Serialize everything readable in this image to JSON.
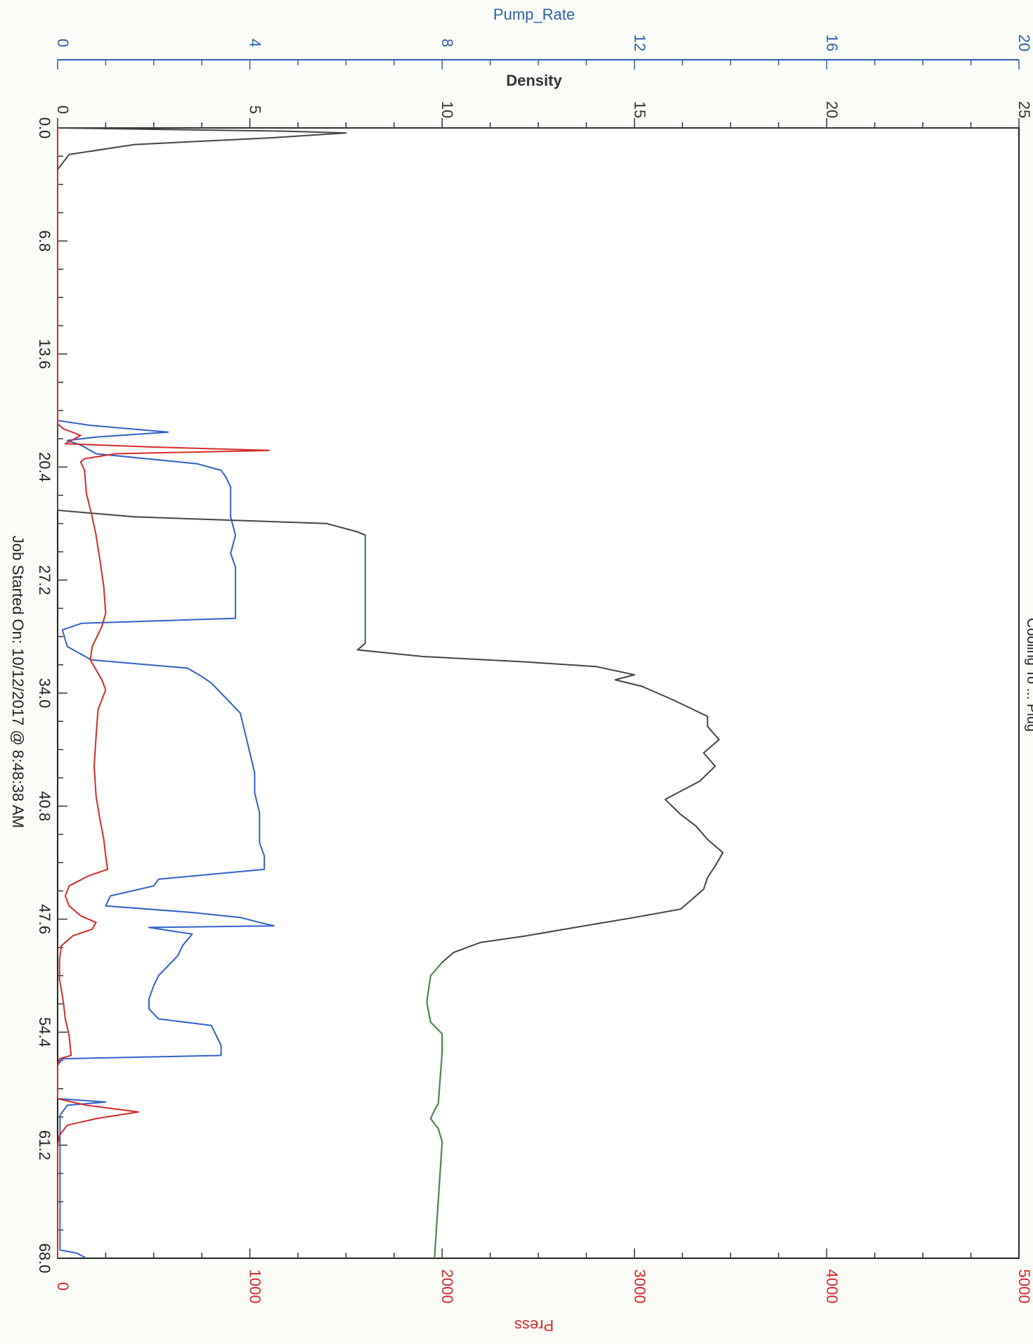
{
  "chart_data": {
    "type": "line",
    "orientation": "rotated-90",
    "footer": "Job Started On: 10/12/2017 @ 8:48:38 AM",
    "partial_title": "Cooling To ... Plug",
    "x_axis": {
      "ticks": [
        "0.0",
        "6.8",
        "13.6",
        "20.4",
        "27.2",
        "34.0",
        "40.8",
        "47.6",
        "54.4",
        "61.2",
        "68.0"
      ],
      "range": [
        0,
        68
      ]
    },
    "axes": {
      "pump_rate": {
        "label": "Pump_Rate",
        "range": [
          0,
          20
        ],
        "ticks": [
          "0",
          "4",
          "8",
          "12",
          "16",
          "20"
        ],
        "color": "#2f5fa8"
      },
      "density": {
        "label": "Density",
        "range": [
          0,
          25
        ],
        "ticks": [
          "0",
          "5",
          "10",
          "15",
          "20",
          "25"
        ],
        "color": "#333333"
      },
      "press": {
        "label": "Press",
        "range": [
          0,
          5000
        ],
        "ticks": [
          "0",
          "1000",
          "2000",
          "3000",
          "4000",
          "5000"
        ],
        "color": "#d42a2a"
      }
    },
    "series": [
      {
        "name": "Density",
        "axis": "density",
        "color": "#444444",
        "points": [
          [
            0,
            0
          ],
          [
            0.2,
            6
          ],
          [
            0.3,
            7.5
          ],
          [
            0.6,
            5.5
          ],
          [
            1.0,
            2
          ],
          [
            1.6,
            0.3
          ],
          [
            2.5,
            0
          ],
          [
            23,
            0
          ],
          [
            23.4,
            2
          ],
          [
            23.8,
            7
          ],
          [
            24.3,
            7.8
          ],
          [
            24.5,
            8.0
          ],
          [
            31,
            8
          ],
          [
            31.4,
            7.8
          ],
          [
            31.8,
            9.5
          ],
          [
            32.1,
            12.0
          ],
          [
            32.4,
            14.0
          ],
          [
            32.9,
            15.0
          ],
          [
            33.2,
            14.5
          ],
          [
            33.6,
            15.2
          ],
          [
            34.4,
            16.0
          ],
          [
            35.4,
            16.9
          ],
          [
            36.0,
            16.9
          ],
          [
            36.8,
            17.2
          ],
          [
            37.6,
            16.8
          ],
          [
            38.4,
            17.1
          ],
          [
            39.3,
            16.7
          ],
          [
            40.4,
            15.8
          ],
          [
            41.3,
            16.2
          ],
          [
            42.0,
            16.6
          ],
          [
            42.8,
            16.9
          ],
          [
            43.6,
            17.3
          ],
          [
            44.4,
            17.1
          ],
          [
            45.1,
            16.9
          ],
          [
            45.8,
            16.8
          ],
          [
            46.4,
            16.5
          ],
          [
            47.0,
            16.2
          ],
          [
            47.5,
            15.0
          ],
          [
            48.0,
            13.7
          ],
          [
            48.6,
            12.2
          ],
          [
            49.0,
            11.0
          ],
          [
            49.6,
            10.3
          ],
          [
            50.2,
            10.0
          ],
          [
            51.0,
            9.7
          ],
          [
            52.6,
            9.6
          ],
          [
            53.8,
            9.7
          ],
          [
            54.5,
            10.0
          ],
          [
            55.6,
            10.0
          ],
          [
            58.7,
            9.9
          ],
          [
            59.1,
            9.8
          ],
          [
            59.6,
            9.7
          ],
          [
            60.2,
            9.9
          ],
          [
            61.0,
            10.0
          ],
          [
            68.0,
            9.8
          ]
        ]
      },
      {
        "name": "Pump_Rate",
        "axis": "pump_rate",
        "color": "#2f60c8",
        "points": [
          [
            0,
            0
          ],
          [
            17.6,
            0
          ],
          [
            17.9,
            0.7
          ],
          [
            18.3,
            2.3
          ],
          [
            18.6,
            0.8
          ],
          [
            18.8,
            0.2
          ],
          [
            19.1,
            0.5
          ],
          [
            19.6,
            0.8
          ],
          [
            20.2,
            2.9
          ],
          [
            20.6,
            3.4
          ],
          [
            21.0,
            3.5
          ],
          [
            21.6,
            3.6
          ],
          [
            22.4,
            3.6
          ],
          [
            23.4,
            3.6
          ],
          [
            24.5,
            3.7
          ],
          [
            25.6,
            3.6
          ],
          [
            26.4,
            3.7
          ],
          [
            27.2,
            3.7
          ],
          [
            28.2,
            3.7
          ],
          [
            29.5,
            3.7
          ],
          [
            29.8,
            0.5
          ],
          [
            30.2,
            0.1
          ],
          [
            31.2,
            0.2
          ],
          [
            32.0,
            0.7
          ],
          [
            32.5,
            2.7
          ],
          [
            33.0,
            3.0
          ],
          [
            33.4,
            3.2
          ],
          [
            34.0,
            3.4
          ],
          [
            35.2,
            3.8
          ],
          [
            36.4,
            3.9
          ],
          [
            37.6,
            4.0
          ],
          [
            38.8,
            4.1
          ],
          [
            40.0,
            4.1
          ],
          [
            41.2,
            4.2
          ],
          [
            42.2,
            4.2
          ],
          [
            43.0,
            4.2
          ],
          [
            43.8,
            4.3
          ],
          [
            44.6,
            4.3
          ],
          [
            45.2,
            2.1
          ],
          [
            45.6,
            2.0
          ],
          [
            46.2,
            1.1
          ],
          [
            46.8,
            1.0
          ],
          [
            47.2,
            2.8
          ],
          [
            47.5,
            3.8
          ],
          [
            47.8,
            4.2
          ],
          [
            48.0,
            4.5
          ],
          [
            48.1,
            1.9
          ],
          [
            48.5,
            2.8
          ],
          [
            49.2,
            2.6
          ],
          [
            49.8,
            2.5
          ],
          [
            50.4,
            2.3
          ],
          [
            51.0,
            2.1
          ],
          [
            51.6,
            2.0
          ],
          [
            52.4,
            1.9
          ],
          [
            53.0,
            1.9
          ],
          [
            53.6,
            2.1
          ],
          [
            54.0,
            3.2
          ],
          [
            54.6,
            3.3
          ],
          [
            55.2,
            3.4
          ],
          [
            55.8,
            3.4
          ],
          [
            56.0,
            0.1
          ],
          [
            56.4,
            0
          ],
          [
            58.4,
            0
          ],
          [
            58.6,
            1.0
          ],
          [
            58.8,
            0.2
          ],
          [
            59.4,
            0.05
          ],
          [
            67.5,
            0.05
          ],
          [
            67.7,
            0.4
          ],
          [
            68.0,
            0.6
          ]
        ]
      },
      {
        "name": "Press",
        "axis": "press",
        "color": "#d42a2a",
        "points": [
          [
            0,
            0
          ],
          [
            17.8,
            0
          ],
          [
            18.1,
            30
          ],
          [
            18.5,
            120
          ],
          [
            19.0,
            40
          ],
          [
            19.2,
            500
          ],
          [
            19.4,
            1100
          ],
          [
            19.6,
            300
          ],
          [
            19.9,
            140
          ],
          [
            20.1,
            120
          ],
          [
            20.6,
            140
          ],
          [
            22.0,
            150
          ],
          [
            23.4,
            180
          ],
          [
            24.5,
            200
          ],
          [
            26.0,
            220
          ],
          [
            27.6,
            240
          ],
          [
            29.2,
            250
          ],
          [
            30.0,
            230
          ],
          [
            31.2,
            180
          ],
          [
            32.0,
            170
          ],
          [
            33.2,
            230
          ],
          [
            33.8,
            250
          ],
          [
            35.0,
            210
          ],
          [
            36.6,
            200
          ],
          [
            38.4,
            190
          ],
          [
            40.2,
            200
          ],
          [
            41.6,
            220
          ],
          [
            42.8,
            240
          ],
          [
            43.8,
            250
          ],
          [
            44.6,
            260
          ],
          [
            45.0,
            160
          ],
          [
            45.6,
            60
          ],
          [
            46.2,
            40
          ],
          [
            46.8,
            60
          ],
          [
            47.4,
            120
          ],
          [
            47.8,
            200
          ],
          [
            48.2,
            180
          ],
          [
            48.6,
            80
          ],
          [
            49.2,
            20
          ],
          [
            50.0,
            10
          ],
          [
            51.2,
            10
          ],
          [
            52.6,
            30
          ],
          [
            53.6,
            40
          ],
          [
            54.6,
            60
          ],
          [
            55.8,
            70
          ],
          [
            56.0,
            10
          ],
          [
            56.4,
            0
          ],
          [
            58.4,
            0
          ],
          [
            58.8,
            150
          ],
          [
            59.2,
            420
          ],
          [
            59.6,
            200
          ],
          [
            60.0,
            50
          ],
          [
            60.6,
            10
          ],
          [
            61.2,
            0
          ],
          [
            68.0,
            0
          ]
        ]
      },
      {
        "name": "green-segment",
        "axis": "density",
        "color": "#4a8a4a",
        "points": [
          [
            24.5,
            8.0
          ],
          [
            31,
            8
          ]
        ]
      },
      {
        "name": "green-segment-2",
        "axis": "density",
        "color": "#4a8a4a",
        "points": [
          [
            50.2,
            10.0
          ],
          [
            51.0,
            9.7
          ],
          [
            52.6,
            9.6
          ],
          [
            53.8,
            9.7
          ],
          [
            54.5,
            10.0
          ],
          [
            55.6,
            10.0
          ],
          [
            58.7,
            9.9
          ],
          [
            59.1,
            9.8
          ],
          [
            59.6,
            9.7
          ],
          [
            60.2,
            9.9
          ],
          [
            61.0,
            10.0
          ],
          [
            68.0,
            9.8
          ]
        ]
      }
    ]
  }
}
